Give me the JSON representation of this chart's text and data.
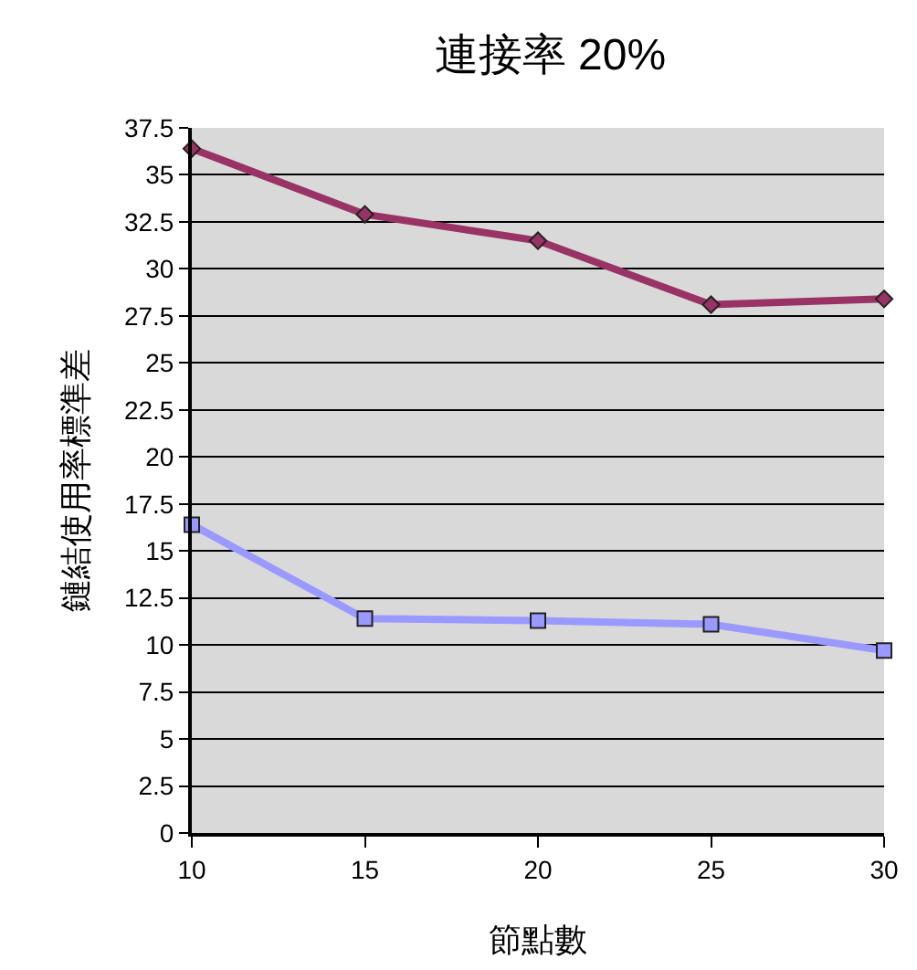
{
  "chart_data": {
    "type": "line",
    "title": "連接率 20%",
    "xlabel": "節點數",
    "ylabel": "鏈結使用率標準差",
    "x": [
      10,
      15,
      20,
      25,
      30
    ],
    "series": [
      {
        "color": "#993366",
        "marker": "diamond",
        "values": [
          36.4,
          32.9,
          31.5,
          28.1,
          28.4
        ]
      },
      {
        "color": "#9999ff",
        "marker": "square",
        "values": [
          16.4,
          11.4,
          11.3,
          11.1,
          9.7
        ]
      }
    ],
    "xlim": [
      10,
      30
    ],
    "xticks": [
      10,
      15,
      20,
      25,
      30
    ],
    "ylim": [
      0,
      37.5
    ],
    "yticks": [
      0,
      2.5,
      5,
      7.5,
      10,
      12.5,
      15,
      17.5,
      20,
      22.5,
      25,
      27.5,
      30,
      32.5,
      35,
      37.5
    ],
    "grid": "y"
  }
}
